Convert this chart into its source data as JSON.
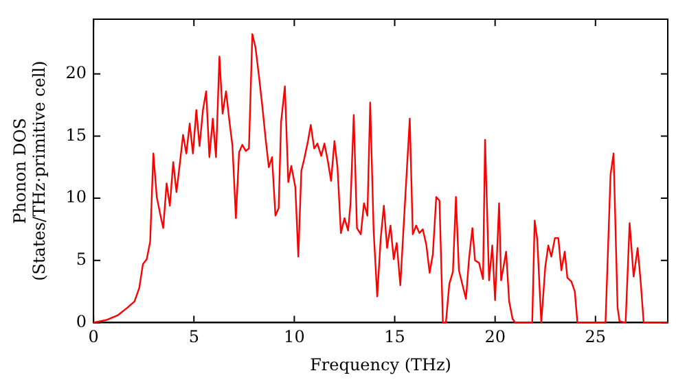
{
  "chart_data": {
    "type": "line",
    "xlabel": "Frequency (THz)",
    "ylabel": "Phonon DOS\n(States/THz·primitive cell)",
    "xlim": [
      0,
      28.6
    ],
    "ylim": [
      0,
      24.4
    ],
    "xticks": [
      0,
      5,
      10,
      15,
      20,
      25
    ],
    "yticks": [
      0,
      5,
      10,
      15,
      20
    ],
    "grid": false,
    "legend": false,
    "marker": "none",
    "line_style": "solid",
    "series": [
      {
        "color": "#ff0000",
        "x": [
          0,
          0.63,
          1.22,
          1.69,
          2.04,
          2.28,
          2.46,
          2.65,
          2.82,
          2.98,
          3.15,
          3.31,
          3.47,
          3.64,
          3.8,
          3.97,
          4.13,
          4.3,
          4.46,
          4.62,
          4.79,
          4.95,
          5.12,
          5.28,
          5.45,
          5.61,
          5.77,
          5.94,
          6.1,
          6.27,
          6.43,
          6.6,
          6.76,
          6.92,
          7.09,
          7.25,
          7.41,
          7.58,
          7.74,
          7.91,
          8.07,
          8.24,
          8.4,
          8.57,
          8.73,
          8.89,
          9.06,
          9.22,
          9.34,
          9.53,
          9.7,
          9.85,
          10.05,
          10.2,
          10.35,
          10.5,
          10.68,
          10.82,
          10.99,
          11.15,
          11.34,
          11.5,
          11.67,
          11.83,
          12.0,
          12.15,
          12.32,
          12.5,
          12.68,
          12.8,
          12.96,
          13.12,
          13.31,
          13.47,
          13.64,
          13.78,
          13.95,
          14.13,
          14.3,
          14.46,
          14.62,
          14.79,
          14.95,
          15.1,
          15.28,
          15.44,
          15.75,
          15.9,
          16.07,
          16.23,
          16.4,
          16.57,
          16.74,
          16.9,
          17.07,
          17.23,
          17.4,
          17.55,
          17.72,
          17.9,
          18.05,
          18.2,
          18.38,
          18.55,
          18.7,
          18.87,
          19.0,
          19.2,
          19.4,
          19.5,
          19.7,
          19.86,
          20.0,
          20.2,
          20.3,
          20.55,
          20.7,
          20.87,
          21.0,
          21.85,
          21.97,
          22.1,
          22.3,
          22.5,
          22.65,
          22.8,
          22.98,
          23.15,
          23.3,
          23.47,
          23.6,
          23.8,
          23.97,
          24.1,
          25.5,
          25.75,
          25.9,
          26.1,
          26.2,
          26.5,
          26.7,
          26.9,
          27.1,
          27.25,
          27.4,
          28.6
        ],
        "values": [
          0,
          0.2,
          0.6,
          1.2,
          1.7,
          2.8,
          4.7,
          5.1,
          6.5,
          13.6,
          10.1,
          8.8,
          7.6,
          11.2,
          9.4,
          12.9,
          10.5,
          12.8,
          15.1,
          13.6,
          16.0,
          13.6,
          17.1,
          14.2,
          17.1,
          18.6,
          13.3,
          16.4,
          13.3,
          21.4,
          16.8,
          18.6,
          16.3,
          14.2,
          8.4,
          13.7,
          14.3,
          13.8,
          14.0,
          23.2,
          22.1,
          19.8,
          17.5,
          14.8,
          12.5,
          13.3,
          8.6,
          9.2,
          16.1,
          19.0,
          11.3,
          12.6,
          10.9,
          5.3,
          12.2,
          13.2,
          14.6,
          15.9,
          14.0,
          14.4,
          13.4,
          14.4,
          13.0,
          11.4,
          14.6,
          12.5,
          7.2,
          8.4,
          7.4,
          9.6,
          16.7,
          7.6,
          7.1,
          9.6,
          8.6,
          17.7,
          7.4,
          2.1,
          6.7,
          9.4,
          6.0,
          7.8,
          5.1,
          6.4,
          3.0,
          7.6,
          16.4,
          7.1,
          7.8,
          7.2,
          7.5,
          6.3,
          4.0,
          5.5,
          10.1,
          9.8,
          0,
          0,
          3.1,
          4.1,
          10.1,
          4.2,
          3.0,
          1.9,
          5.1,
          7.6,
          5.0,
          4.8,
          3.5,
          14.7,
          3.4,
          6.2,
          1.8,
          9.6,
          3.4,
          5.7,
          1.7,
          0.3,
          0,
          0,
          8.2,
          6.7,
          0,
          4.5,
          6.2,
          5.3,
          6.8,
          6.8,
          4.2,
          5.7,
          3.6,
          3.3,
          2.5,
          0,
          0,
          11.9,
          13.6,
          1.2,
          0.1,
          0,
          8.0,
          3.7,
          6.0,
          3.3,
          0,
          0
        ]
      }
    ]
  }
}
